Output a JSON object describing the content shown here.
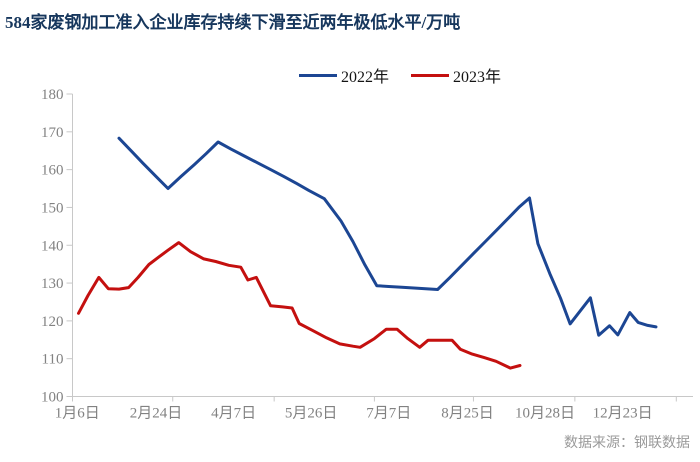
{
  "title": "584家废钢加工准入企业库存持续下滑至近两年极低水平/万吨",
  "source_note": "数据来源：钢联数据",
  "legend": [
    {
      "label": "2022年",
      "color": "#1c4693"
    },
    {
      "label": "2023年",
      "color": "#c4100f"
    }
  ],
  "colors": {
    "title": "#17375d",
    "axis_line": "#c8c8c8",
    "axis_text": "#828282",
    "series_2022": "#1c4693",
    "series_2023": "#c4100f",
    "source_text": "#9a9a9a",
    "background": "#ffffff"
  },
  "chart_data": {
    "type": "line",
    "title": "584家废钢加工准入企业库存持续下滑至近两年极低水平/万吨",
    "unit": "万吨",
    "xlabel": "",
    "ylabel": "",
    "ylim": [
      100,
      180
    ],
    "ytick_step": 10,
    "xlim_weeks": [
      0,
      52
    ],
    "grid": false,
    "legend_position": "top-center",
    "x_tick_labels": [
      "1月6日",
      "2月24日",
      "4月7日",
      "5月26日",
      "7月7日",
      "8月25日",
      "10月28日",
      "12月23日"
    ],
    "label_weeks": [
      0.4,
      7.0,
      13.5,
      20.0,
      26.5,
      33.1,
      39.6,
      46.1
    ],
    "tick_weeks": [
      0,
      8.4,
      16.9,
      25.3,
      33.6,
      42.1,
      50.6
    ],
    "series": [
      {
        "name": "2022年",
        "color": "#1c4693",
        "points": [
          [
            3.9,
            168.3
          ],
          [
            4.9,
            165.0
          ],
          [
            5.9,
            161.7
          ],
          [
            7.0,
            158.2
          ],
          [
            8.0,
            155.0
          ],
          [
            9.1,
            158.2
          ],
          [
            10.2,
            161.3
          ],
          [
            11.2,
            164.2
          ],
          [
            12.2,
            167.3
          ],
          [
            13.3,
            165.4
          ],
          [
            14.4,
            163.6
          ],
          [
            15.5,
            161.8
          ],
          [
            16.6,
            160.0
          ],
          [
            17.7,
            158.2
          ],
          [
            18.8,
            156.3
          ],
          [
            19.8,
            154.5
          ],
          [
            21.1,
            152.3
          ],
          [
            22.5,
            146.4
          ],
          [
            23.5,
            141.0
          ],
          [
            24.5,
            134.8
          ],
          [
            25.5,
            129.3
          ],
          [
            26.5,
            129.1
          ],
          [
            27.6,
            128.9
          ],
          [
            28.6,
            128.7
          ],
          [
            29.6,
            128.5
          ],
          [
            30.6,
            128.3
          ],
          [
            31.6,
            131.4
          ],
          [
            32.6,
            134.6
          ],
          [
            33.6,
            137.8
          ],
          [
            34.6,
            141.0
          ],
          [
            35.6,
            144.2
          ],
          [
            36.6,
            147.4
          ],
          [
            37.4,
            150.0
          ],
          [
            38.3,
            152.5
          ],
          [
            39.0,
            140.4
          ],
          [
            40.0,
            132.5
          ],
          [
            40.9,
            126.0
          ],
          [
            41.7,
            119.2
          ],
          [
            43.4,
            126.1
          ],
          [
            44.1,
            116.2
          ],
          [
            45.0,
            118.7
          ],
          [
            45.7,
            116.3
          ],
          [
            46.7,
            122.2
          ],
          [
            47.4,
            119.6
          ],
          [
            48.2,
            118.8
          ],
          [
            48.9,
            118.4
          ]
        ]
      },
      {
        "name": "2023年",
        "color": "#c4100f",
        "points": [
          [
            0.5,
            122.0
          ],
          [
            1.3,
            126.7
          ],
          [
            2.2,
            131.5
          ],
          [
            3.0,
            128.5
          ],
          [
            3.9,
            128.4
          ],
          [
            4.7,
            128.8
          ],
          [
            5.5,
            131.5
          ],
          [
            6.4,
            134.9
          ],
          [
            7.2,
            136.8
          ],
          [
            8.0,
            138.7
          ],
          [
            8.9,
            140.7
          ],
          [
            9.9,
            138.3
          ],
          [
            11.0,
            136.4
          ],
          [
            12.0,
            135.7
          ],
          [
            13.1,
            134.7
          ],
          [
            14.1,
            134.2
          ],
          [
            14.7,
            130.8
          ],
          [
            15.4,
            131.5
          ],
          [
            16.6,
            124.0
          ],
          [
            17.6,
            123.7
          ],
          [
            18.4,
            123.4
          ],
          [
            19.0,
            119.3
          ],
          [
            20.1,
            117.5
          ],
          [
            21.3,
            115.5
          ],
          [
            22.4,
            113.9
          ],
          [
            23.5,
            113.3
          ],
          [
            24.1,
            113.0
          ],
          [
            25.3,
            115.3
          ],
          [
            26.3,
            117.8
          ],
          [
            27.2,
            117.8
          ],
          [
            28.1,
            115.3
          ],
          [
            29.1,
            113.0
          ],
          [
            29.8,
            114.9
          ],
          [
            31.8,
            114.9
          ],
          [
            32.5,
            112.5
          ],
          [
            33.5,
            111.2
          ],
          [
            34.5,
            110.3
          ],
          [
            35.5,
            109.3
          ],
          [
            36.7,
            107.5
          ],
          [
            37.5,
            108.2
          ]
        ]
      }
    ]
  }
}
